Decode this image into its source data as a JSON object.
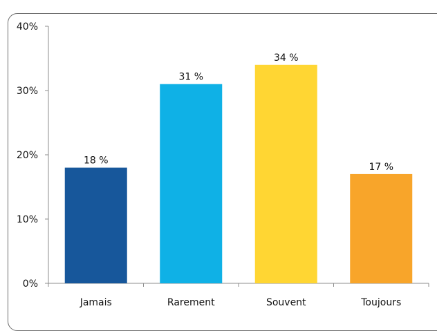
{
  "chart_data": {
    "type": "bar",
    "title": "",
    "xlabel": "",
    "ylabel": "",
    "categories": [
      "Jamais",
      "Rarement",
      "Souvent",
      "Toujours"
    ],
    "values": [
      18,
      31,
      34,
      17
    ],
    "data_labels": [
      "18 %",
      "31 %",
      "34 %",
      "17 %"
    ],
    "ylim": [
      0,
      40
    ],
    "yticks": [
      0,
      10,
      20,
      30,
      40
    ],
    "ytick_labels": [
      "0%",
      "10%",
      "20%",
      "30%",
      "40%"
    ],
    "bar_colors": [
      "#17579b",
      "#0fb1e6",
      "#ffd633",
      "#f8a52a"
    ],
    "grid": false,
    "legend": "none"
  }
}
